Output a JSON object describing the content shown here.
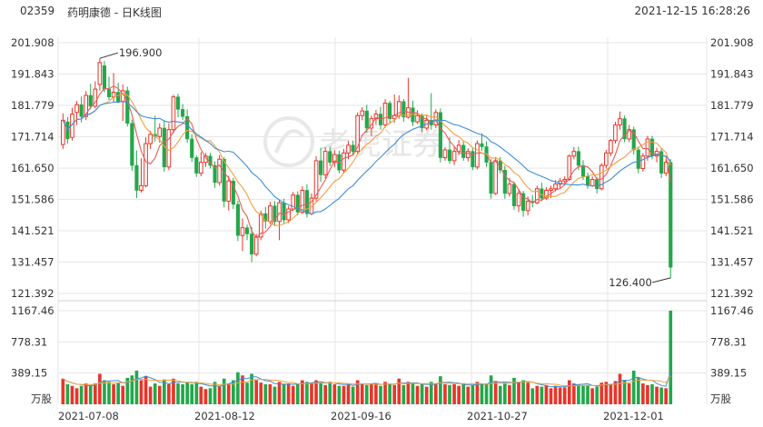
{
  "header": {
    "code": "02359",
    "name": "药明康德 - 日K线图",
    "datetime": "2021-12-15 16:28:26"
  },
  "watermark": "老虎证券",
  "colors": {
    "up": "#e8352a",
    "down": "#22a84a",
    "ma5": "#ea5a5a",
    "ma10": "#f0a040",
    "ma20": "#3d8fd6",
    "grid": "#e6e6e6",
    "text": "#333333"
  },
  "chart_data": {
    "type": "candlestick",
    "price_ticks": [
      "201.908",
      "191.843",
      "181.779",
      "171.714",
      "161.650",
      "151.586",
      "141.521",
      "131.457",
      "121.392"
    ],
    "price_range": [
      121.392,
      201.908
    ],
    "volume_ticks": [
      "1167.46",
      "778.31",
      "389.15"
    ],
    "volume_unit": "万股",
    "volume_range": [
      0,
      1167.46
    ],
    "x_labels": [
      "2021-07-08",
      "2021-08-12",
      "2021-09-16",
      "2021-10-27",
      "2021-12-01"
    ],
    "annotations": [
      {
        "text": "196.900",
        "value": 196.9,
        "type": "high"
      },
      {
        "text": "126.400",
        "value": 126.4,
        "type": "low"
      }
    ],
    "candles": [
      {
        "o": 169.2,
        "h": 179.2,
        "l": 167.8,
        "c": 177.0,
        "v": 320
      },
      {
        "o": 176.5,
        "h": 178.0,
        "l": 169.5,
        "c": 171.0,
        "v": 250
      },
      {
        "o": 171.5,
        "h": 181.0,
        "l": 170.5,
        "c": 179.0,
        "v": 230
      },
      {
        "o": 179.5,
        "h": 183.2,
        "l": 175.5,
        "c": 182.0,
        "v": 200
      },
      {
        "o": 182.0,
        "h": 184.6,
        "l": 176.3,
        "c": 178.2,
        "v": 230
      },
      {
        "o": 178.2,
        "h": 186.4,
        "l": 177.0,
        "c": 185.0,
        "v": 260
      },
      {
        "o": 185.0,
        "h": 188.7,
        "l": 180.5,
        "c": 181.5,
        "v": 240
      },
      {
        "o": 181.5,
        "h": 189.5,
        "l": 180.8,
        "c": 187.0,
        "v": 260
      },
      {
        "o": 188.5,
        "h": 196.9,
        "l": 186.5,
        "c": 195.5,
        "v": 380
      },
      {
        "o": 194.5,
        "h": 196.0,
        "l": 186.0,
        "c": 187.0,
        "v": 300
      },
      {
        "o": 187.0,
        "h": 191.0,
        "l": 183.5,
        "c": 184.5,
        "v": 280
      },
      {
        "o": 184.5,
        "h": 192.2,
        "l": 182.9,
        "c": 186.0,
        "v": 250
      },
      {
        "o": 186.0,
        "h": 189.0,
        "l": 182.5,
        "c": 183.0,
        "v": 270
      },
      {
        "o": 183.0,
        "h": 188.5,
        "l": 176.8,
        "c": 186.5,
        "v": 230
      },
      {
        "o": 186.5,
        "h": 187.8,
        "l": 175.0,
        "c": 176.0,
        "v": 330
      },
      {
        "o": 176.0,
        "h": 177.2,
        "l": 160.8,
        "c": 162.5,
        "v": 360
      },
      {
        "o": 162.5,
        "h": 167.3,
        "l": 152.0,
        "c": 154.5,
        "v": 420
      },
      {
        "o": 154.5,
        "h": 164.8,
        "l": 153.8,
        "c": 156.0,
        "v": 300
      },
      {
        "o": 156.0,
        "h": 171.5,
        "l": 155.5,
        "c": 169.5,
        "v": 350
      },
      {
        "o": 169.5,
        "h": 173.6,
        "l": 167.8,
        "c": 172.5,
        "v": 220
      },
      {
        "o": 172.5,
        "h": 178.5,
        "l": 170.2,
        "c": 171.8,
        "v": 260
      },
      {
        "o": 171.8,
        "h": 176.0,
        "l": 169.8,
        "c": 174.5,
        "v": 230
      },
      {
        "o": 174.5,
        "h": 177.0,
        "l": 160.5,
        "c": 162.0,
        "v": 310
      },
      {
        "o": 162.0,
        "h": 176.0,
        "l": 161.0,
        "c": 174.0,
        "v": 250
      },
      {
        "o": 174.0,
        "h": 185.2,
        "l": 172.8,
        "c": 184.5,
        "v": 320
      },
      {
        "o": 184.5,
        "h": 185.5,
        "l": 178.0,
        "c": 180.5,
        "v": 260
      },
      {
        "o": 180.5,
        "h": 182.2,
        "l": 177.0,
        "c": 178.2,
        "v": 250
      },
      {
        "o": 178.2,
        "h": 180.5,
        "l": 169.8,
        "c": 171.0,
        "v": 280
      },
      {
        "o": 171.0,
        "h": 172.5,
        "l": 163.6,
        "c": 165.0,
        "v": 250
      },
      {
        "o": 165.0,
        "h": 165.8,
        "l": 158.8,
        "c": 160.0,
        "v": 280
      },
      {
        "o": 160.0,
        "h": 166.8,
        "l": 159.0,
        "c": 163.5,
        "v": 220
      },
      {
        "o": 163.5,
        "h": 166.5,
        "l": 162.0,
        "c": 165.5,
        "v": 190
      },
      {
        "o": 165.5,
        "h": 166.5,
        "l": 161.5,
        "c": 162.5,
        "v": 200
      },
      {
        "o": 162.5,
        "h": 163.8,
        "l": 155.3,
        "c": 157.0,
        "v": 280
      },
      {
        "o": 157.0,
        "h": 165.8,
        "l": 156.0,
        "c": 164.5,
        "v": 230
      },
      {
        "o": 164.5,
        "h": 165.2,
        "l": 149.0,
        "c": 151.0,
        "v": 320
      },
      {
        "o": 151.0,
        "h": 159.2,
        "l": 148.0,
        "c": 157.5,
        "v": 260
      },
      {
        "o": 157.5,
        "h": 158.5,
        "l": 148.5,
        "c": 150.0,
        "v": 300
      },
      {
        "o": 150.0,
        "h": 151.2,
        "l": 138.2,
        "c": 140.0,
        "v": 400
      },
      {
        "o": 140.0,
        "h": 145.5,
        "l": 135.0,
        "c": 142.5,
        "v": 360
      },
      {
        "o": 142.5,
        "h": 143.5,
        "l": 138.5,
        "c": 140.5,
        "v": 270
      },
      {
        "o": 140.5,
        "h": 142.8,
        "l": 131.5,
        "c": 134.0,
        "v": 380
      },
      {
        "o": 134.0,
        "h": 140.5,
        "l": 133.3,
        "c": 139.5,
        "v": 300
      },
      {
        "o": 139.5,
        "h": 148.0,
        "l": 138.5,
        "c": 147.0,
        "v": 270
      },
      {
        "o": 147.0,
        "h": 149.2,
        "l": 142.2,
        "c": 144.5,
        "v": 250
      },
      {
        "o": 144.5,
        "h": 150.8,
        "l": 143.6,
        "c": 149.5,
        "v": 250
      },
      {
        "o": 149.5,
        "h": 151.0,
        "l": 143.0,
        "c": 144.5,
        "v": 220
      },
      {
        "o": 144.5,
        "h": 151.5,
        "l": 138.5,
        "c": 150.5,
        "v": 280
      },
      {
        "o": 150.5,
        "h": 151.8,
        "l": 144.0,
        "c": 145.0,
        "v": 250
      },
      {
        "o": 145.0,
        "h": 149.5,
        "l": 144.0,
        "c": 148.5,
        "v": 260
      },
      {
        "o": 148.5,
        "h": 154.0,
        "l": 147.8,
        "c": 153.0,
        "v": 230
      },
      {
        "o": 153.0,
        "h": 154.2,
        "l": 146.5,
        "c": 147.5,
        "v": 250
      },
      {
        "o": 147.5,
        "h": 155.8,
        "l": 146.8,
        "c": 154.5,
        "v": 300
      },
      {
        "o": 154.5,
        "h": 156.5,
        "l": 145.8,
        "c": 147.0,
        "v": 280
      },
      {
        "o": 147.0,
        "h": 153.5,
        "l": 146.5,
        "c": 152.0,
        "v": 270
      },
      {
        "o": 152.0,
        "h": 165.5,
        "l": 151.0,
        "c": 164.0,
        "v": 300
      },
      {
        "o": 164.0,
        "h": 168.2,
        "l": 157.2,
        "c": 159.5,
        "v": 260
      },
      {
        "o": 159.5,
        "h": 168.3,
        "l": 158.2,
        "c": 167.0,
        "v": 240
      },
      {
        "o": 167.0,
        "h": 168.5,
        "l": 162.3,
        "c": 163.5,
        "v": 280
      },
      {
        "o": 163.5,
        "h": 167.4,
        "l": 162.0,
        "c": 166.0,
        "v": 250
      },
      {
        "o": 166.0,
        "h": 167.2,
        "l": 160.0,
        "c": 161.0,
        "v": 230
      },
      {
        "o": 161.0,
        "h": 167.8,
        "l": 160.0,
        "c": 166.5,
        "v": 230
      },
      {
        "o": 166.5,
        "h": 170.4,
        "l": 164.5,
        "c": 169.0,
        "v": 250
      },
      {
        "o": 169.0,
        "h": 170.5,
        "l": 166.0,
        "c": 167.0,
        "v": 220
      },
      {
        "o": 167.0,
        "h": 179.5,
        "l": 166.3,
        "c": 178.5,
        "v": 300
      },
      {
        "o": 178.5,
        "h": 181.2,
        "l": 177.0,
        "c": 180.0,
        "v": 260
      },
      {
        "o": 180.0,
        "h": 182.0,
        "l": 173.0,
        "c": 174.5,
        "v": 240
      },
      {
        "o": 174.5,
        "h": 178.5,
        "l": 172.0,
        "c": 177.5,
        "v": 260
      },
      {
        "o": 177.5,
        "h": 180.3,
        "l": 175.5,
        "c": 179.0,
        "v": 250
      },
      {
        "o": 179.0,
        "h": 181.3,
        "l": 174.0,
        "c": 175.5,
        "v": 230
      },
      {
        "o": 175.5,
        "h": 183.8,
        "l": 174.6,
        "c": 182.5,
        "v": 280
      },
      {
        "o": 182.5,
        "h": 183.2,
        "l": 175.8,
        "c": 177.5,
        "v": 250
      },
      {
        "o": 177.5,
        "h": 185.3,
        "l": 176.2,
        "c": 178.5,
        "v": 240
      },
      {
        "o": 178.5,
        "h": 185.0,
        "l": 177.5,
        "c": 183.0,
        "v": 320
      },
      {
        "o": 183.0,
        "h": 183.8,
        "l": 176.5,
        "c": 178.0,
        "v": 240
      },
      {
        "o": 178.0,
        "h": 190.6,
        "l": 177.5,
        "c": 181.0,
        "v": 280
      },
      {
        "o": 181.0,
        "h": 183.3,
        "l": 175.2,
        "c": 176.5,
        "v": 260
      },
      {
        "o": 176.5,
        "h": 180.2,
        "l": 175.8,
        "c": 178.5,
        "v": 230
      },
      {
        "o": 178.5,
        "h": 179.2,
        "l": 173.2,
        "c": 174.5,
        "v": 250
      },
      {
        "o": 174.5,
        "h": 178.5,
        "l": 173.8,
        "c": 177.0,
        "v": 220
      },
      {
        "o": 177.0,
        "h": 185.7,
        "l": 174.0,
        "c": 175.5,
        "v": 280
      },
      {
        "o": 175.5,
        "h": 180.5,
        "l": 174.5,
        "c": 179.5,
        "v": 260
      },
      {
        "o": 179.5,
        "h": 180.8,
        "l": 163.5,
        "c": 165.0,
        "v": 350
      },
      {
        "o": 165.0,
        "h": 168.4,
        "l": 164.0,
        "c": 167.5,
        "v": 250
      },
      {
        "o": 167.5,
        "h": 171.5,
        "l": 163.0,
        "c": 164.0,
        "v": 240
      },
      {
        "o": 164.0,
        "h": 168.7,
        "l": 162.6,
        "c": 167.0,
        "v": 250
      },
      {
        "o": 167.0,
        "h": 170.7,
        "l": 165.8,
        "c": 169.0,
        "v": 230
      },
      {
        "o": 169.0,
        "h": 170.2,
        "l": 164.0,
        "c": 165.0,
        "v": 260
      },
      {
        "o": 165.0,
        "h": 168.0,
        "l": 163.8,
        "c": 167.0,
        "v": 220
      },
      {
        "o": 167.0,
        "h": 168.0,
        "l": 161.0,
        "c": 162.0,
        "v": 240
      },
      {
        "o": 162.0,
        "h": 170.5,
        "l": 161.2,
        "c": 169.5,
        "v": 280
      },
      {
        "o": 169.5,
        "h": 172.8,
        "l": 167.2,
        "c": 168.5,
        "v": 250
      },
      {
        "o": 168.5,
        "h": 170.3,
        "l": 162.0,
        "c": 163.5,
        "v": 260
      },
      {
        "o": 163.5,
        "h": 164.5,
        "l": 151.8,
        "c": 153.5,
        "v": 360
      },
      {
        "o": 153.5,
        "h": 165.2,
        "l": 153.0,
        "c": 164.0,
        "v": 280
      },
      {
        "o": 164.0,
        "h": 165.2,
        "l": 160.0,
        "c": 161.0,
        "v": 230
      },
      {
        "o": 161.0,
        "h": 162.3,
        "l": 151.8,
        "c": 153.5,
        "v": 260
      },
      {
        "o": 153.5,
        "h": 158.5,
        "l": 152.5,
        "c": 156.5,
        "v": 240
      },
      {
        "o": 156.5,
        "h": 157.3,
        "l": 148.3,
        "c": 149.5,
        "v": 330
      },
      {
        "o": 149.5,
        "h": 155.0,
        "l": 147.5,
        "c": 153.5,
        "v": 280
      },
      {
        "o": 153.5,
        "h": 154.3,
        "l": 146.0,
        "c": 148.0,
        "v": 300
      },
      {
        "o": 148.0,
        "h": 152.5,
        "l": 146.5,
        "c": 151.0,
        "v": 270
      },
      {
        "o": 151.0,
        "h": 153.0,
        "l": 149.0,
        "c": 150.5,
        "v": 200
      },
      {
        "o": 150.5,
        "h": 156.0,
        "l": 150.0,
        "c": 155.0,
        "v": 230
      },
      {
        "o": 155.0,
        "h": 157.0,
        "l": 151.0,
        "c": 152.0,
        "v": 220
      },
      {
        "o": 152.0,
        "h": 155.5,
        "l": 151.5,
        "c": 154.5,
        "v": 240
      },
      {
        "o": 154.5,
        "h": 156.0,
        "l": 152.0,
        "c": 155.0,
        "v": 200
      },
      {
        "o": 155.0,
        "h": 157.8,
        "l": 154.2,
        "c": 156.5,
        "v": 230
      },
      {
        "o": 156.5,
        "h": 158.5,
        "l": 155.0,
        "c": 157.5,
        "v": 210
      },
      {
        "o": 157.5,
        "h": 159.0,
        "l": 156.0,
        "c": 158.0,
        "v": 210
      },
      {
        "o": 158.0,
        "h": 166.0,
        "l": 157.5,
        "c": 165.5,
        "v": 300
      },
      {
        "o": 165.5,
        "h": 168.4,
        "l": 164.5,
        "c": 167.0,
        "v": 260
      },
      {
        "o": 167.0,
        "h": 168.5,
        "l": 161.0,
        "c": 162.5,
        "v": 250
      },
      {
        "o": 162.5,
        "h": 164.2,
        "l": 157.8,
        "c": 159.0,
        "v": 230
      },
      {
        "o": 159.0,
        "h": 160.2,
        "l": 155.0,
        "c": 156.0,
        "v": 240
      },
      {
        "o": 156.0,
        "h": 159.0,
        "l": 155.5,
        "c": 158.0,
        "v": 200
      },
      {
        "o": 158.0,
        "h": 158.8,
        "l": 153.5,
        "c": 155.0,
        "v": 220
      },
      {
        "o": 155.0,
        "h": 163.2,
        "l": 154.5,
        "c": 162.5,
        "v": 270
      },
      {
        "o": 162.5,
        "h": 167.5,
        "l": 161.5,
        "c": 166.5,
        "v": 280
      },
      {
        "o": 166.5,
        "h": 171.0,
        "l": 165.5,
        "c": 170.5,
        "v": 250
      },
      {
        "o": 170.5,
        "h": 176.5,
        "l": 169.5,
        "c": 175.5,
        "v": 290
      },
      {
        "o": 175.5,
        "h": 179.8,
        "l": 174.0,
        "c": 177.5,
        "v": 380
      },
      {
        "o": 177.5,
        "h": 178.5,
        "l": 170.0,
        "c": 171.0,
        "v": 300
      },
      {
        "o": 171.0,
        "h": 175.5,
        "l": 170.0,
        "c": 174.0,
        "v": 260
      },
      {
        "o": 174.0,
        "h": 175.0,
        "l": 166.0,
        "c": 167.5,
        "v": 420
      },
      {
        "o": 167.5,
        "h": 168.5,
        "l": 160.0,
        "c": 161.5,
        "v": 330
      },
      {
        "o": 161.5,
        "h": 166.5,
        "l": 160.5,
        "c": 165.5,
        "v": 260
      },
      {
        "o": 165.5,
        "h": 172.0,
        "l": 164.0,
        "c": 171.0,
        "v": 240
      },
      {
        "o": 171.0,
        "h": 172.0,
        "l": 164.5,
        "c": 165.5,
        "v": 250
      },
      {
        "o": 165.5,
        "h": 168.2,
        "l": 163.5,
        "c": 167.0,
        "v": 220
      },
      {
        "o": 167.0,
        "h": 168.0,
        "l": 158.5,
        "c": 160.0,
        "v": 210
      },
      {
        "o": 160.0,
        "h": 164.5,
        "l": 159.0,
        "c": 163.5,
        "v": 200
      },
      {
        "o": 163.5,
        "h": 164.5,
        "l": 126.4,
        "c": 129.8,
        "v": 1167.46
      }
    ]
  }
}
